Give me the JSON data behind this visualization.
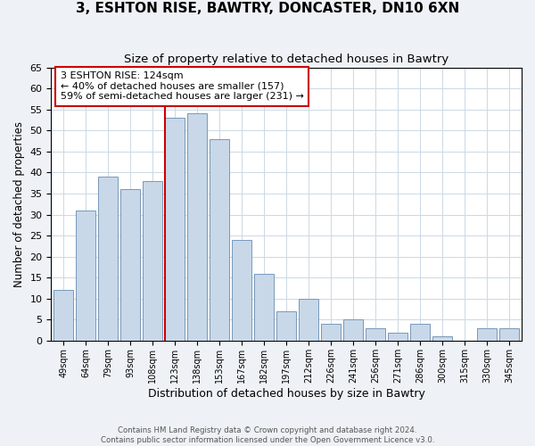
{
  "title1": "3, ESHTON RISE, BAWTRY, DONCASTER, DN10 6XN",
  "title2": "Size of property relative to detached houses in Bawtry",
  "xlabel": "Distribution of detached houses by size in Bawtry",
  "ylabel": "Number of detached properties",
  "bar_labels": [
    "49sqm",
    "64sqm",
    "79sqm",
    "93sqm",
    "108sqm",
    "123sqm",
    "138sqm",
    "153sqm",
    "167sqm",
    "182sqm",
    "197sqm",
    "212sqm",
    "226sqm",
    "241sqm",
    "256sqm",
    "271sqm",
    "286sqm",
    "300sqm",
    "315sqm",
    "330sqm",
    "345sqm"
  ],
  "bar_values": [
    12,
    31,
    39,
    36,
    38,
    53,
    54,
    48,
    24,
    16,
    7,
    10,
    4,
    5,
    3,
    2,
    4,
    1,
    0,
    3,
    3
  ],
  "bar_color": "#c8d8e8",
  "bar_edge_color": "#7799bb",
  "vline_color": "#cc0000",
  "annotation_text": "3 ESHTON RISE: 124sqm\n← 40% of detached houses are smaller (157)\n59% of semi-detached houses are larger (231) →",
  "annotation_box_color": "white",
  "annotation_box_edge_color": "#cc0000",
  "ylim": [
    0,
    65
  ],
  "yticks": [
    0,
    5,
    10,
    15,
    20,
    25,
    30,
    35,
    40,
    45,
    50,
    55,
    60,
    65
  ],
  "footnote1": "Contains HM Land Registry data © Crown copyright and database right 2024.",
  "footnote2": "Contains public sector information licensed under the Open Government Licence v3.0.",
  "background_color": "#eef2f6",
  "plot_background_color": "#ffffff",
  "grid_color": "#ccd8e4",
  "title1_fontsize": 11,
  "title2_fontsize": 9.5
}
